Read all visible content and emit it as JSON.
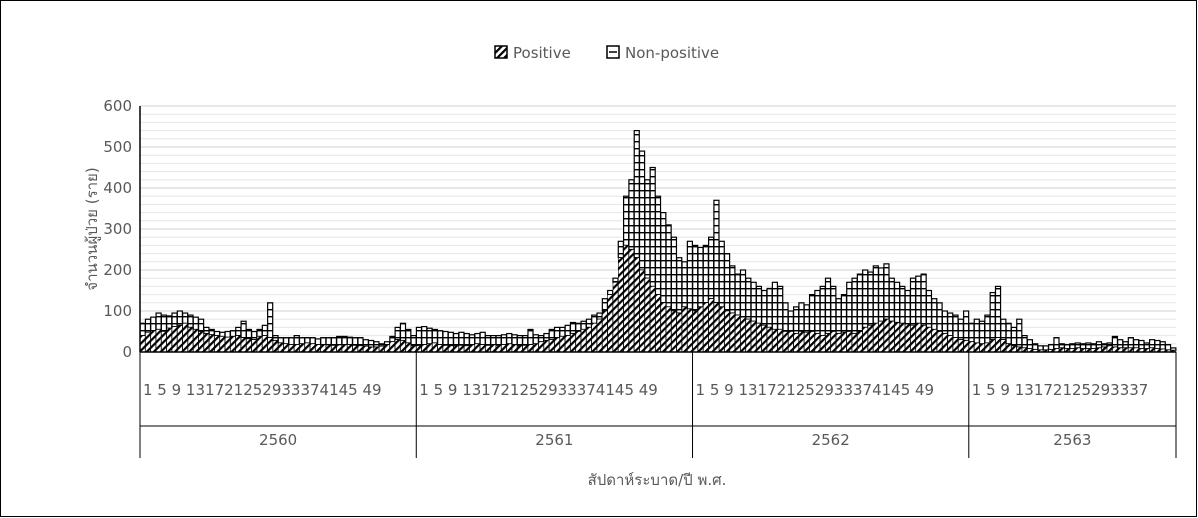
{
  "chart_data": {
    "type": "bar",
    "stacked": true,
    "title": "",
    "xlabel": "สัปดาห์ระบาด/ปี พ.ศ.",
    "ylabel": "จำนวนผู้ป่วย (ราย)",
    "ylim": [
      0,
      600
    ],
    "yticks": [
      0,
      100,
      200,
      300,
      400,
      500,
      600
    ],
    "grid": true,
    "legend": {
      "placement": "top-center",
      "entries": [
        {
          "name": "Positive",
          "pattern": "diagonal-hatch"
        },
        {
          "name": "Non-positive",
          "pattern": "horizontal-stripe"
        }
      ]
    },
    "x_tick_labels": [
      "1 5 9 131721252933374145 49",
      "1 5 9 131721252933374145 49",
      "1 5 9 131721252933374145 49",
      "1 5 9 13172125293337"
    ],
    "years": [
      {
        "year": "2560",
        "weeks": 52,
        "positive": [
          40,
          48,
          52,
          55,
          50,
          58,
          62,
          65,
          70,
          60,
          55,
          50,
          45,
          42,
          40,
          38,
          36,
          38,
          40,
          35,
          32,
          30,
          38,
          40,
          35,
          28,
          22,
          20,
          18,
          18,
          20,
          22,
          20,
          18,
          18,
          17,
          16,
          17,
          18,
          18,
          16,
          15,
          14,
          12,
          12,
          14,
          18,
          25,
          30,
          28,
          22,
          15
        ],
        "total": [
          70,
          80,
          85,
          95,
          90,
          88,
          95,
          100,
          95,
          90,
          85,
          80,
          60,
          55,
          50,
          48,
          50,
          52,
          60,
          75,
          55,
          50,
          55,
          65,
          120,
          40,
          35,
          35,
          35,
          40,
          35,
          35,
          35,
          32,
          35,
          35,
          35,
          38,
          38,
          36,
          35,
          35,
          30,
          28,
          25,
          20,
          25,
          38,
          60,
          70,
          55,
          40
        ]
      },
      {
        "year": "2561",
        "weeks": 52,
        "positive": [
          15,
          18,
          20,
          22,
          18,
          16,
          15,
          15,
          16,
          15,
          18,
          20,
          18,
          16,
          18,
          16,
          18,
          20,
          18,
          15,
          16,
          18,
          20,
          25,
          28,
          30,
          35,
          38,
          40,
          45,
          50,
          55,
          60,
          70,
          80,
          100,
          140,
          170,
          230,
          260,
          250,
          230,
          200,
          180,
          160,
          140,
          120,
          110,
          100,
          95,
          110,
          105
        ],
        "total": [
          60,
          62,
          58,
          55,
          52,
          50,
          48,
          45,
          48,
          45,
          42,
          45,
          48,
          40,
          40,
          40,
          42,
          45,
          42,
          40,
          40,
          55,
          42,
          40,
          45,
          55,
          60,
          60,
          65,
          72,
          70,
          75,
          80,
          90,
          95,
          130,
          150,
          180,
          270,
          380,
          420,
          540,
          490,
          420,
          450,
          380,
          340,
          310,
          280,
          230,
          220,
          270
        ]
      },
      {
        "year": "2562",
        "weeks": 52,
        "positive": [
          100,
          110,
          120,
          130,
          120,
          110,
          100,
          95,
          90,
          85,
          80,
          75,
          70,
          65,
          60,
          55,
          55,
          50,
          50,
          45,
          50,
          48,
          50,
          45,
          40,
          45,
          50,
          45,
          48,
          50,
          45,
          50,
          60,
          65,
          70,
          75,
          80,
          75,
          72,
          70,
          68,
          65,
          70,
          65,
          60,
          55,
          50,
          45,
          40,
          35,
          30,
          28
        ],
        "total": [
          260,
          255,
          260,
          280,
          370,
          270,
          240,
          210,
          190,
          200,
          180,
          170,
          160,
          150,
          155,
          170,
          160,
          120,
          100,
          110,
          120,
          115,
          140,
          150,
          160,
          180,
          160,
          130,
          140,
          170,
          180,
          190,
          200,
          195,
          210,
          205,
          215,
          180,
          170,
          160,
          150,
          180,
          185,
          190,
          150,
          130,
          120,
          100,
          95,
          90,
          80,
          100
        ]
      },
      {
        "year": "2563",
        "weeks": 39,
        "positive": [
          25,
          22,
          20,
          22,
          30,
          35,
          30,
          20,
          15,
          12,
          10,
          8,
          6,
          5,
          5,
          6,
          8,
          10,
          8,
          8,
          10,
          8,
          8,
          8,
          10,
          12,
          15,
          12,
          10,
          10,
          10,
          10,
          8,
          8,
          10,
          8,
          7,
          5,
          4
        ],
        "total": [
          70,
          80,
          75,
          90,
          145,
          160,
          80,
          70,
          60,
          80,
          40,
          30,
          20,
          15,
          15,
          18,
          35,
          20,
          18,
          20,
          22,
          20,
          22,
          20,
          25,
          20,
          22,
          38,
          30,
          25,
          35,
          30,
          28,
          22,
          30,
          28,
          25,
          18,
          10
        ]
      }
    ]
  }
}
